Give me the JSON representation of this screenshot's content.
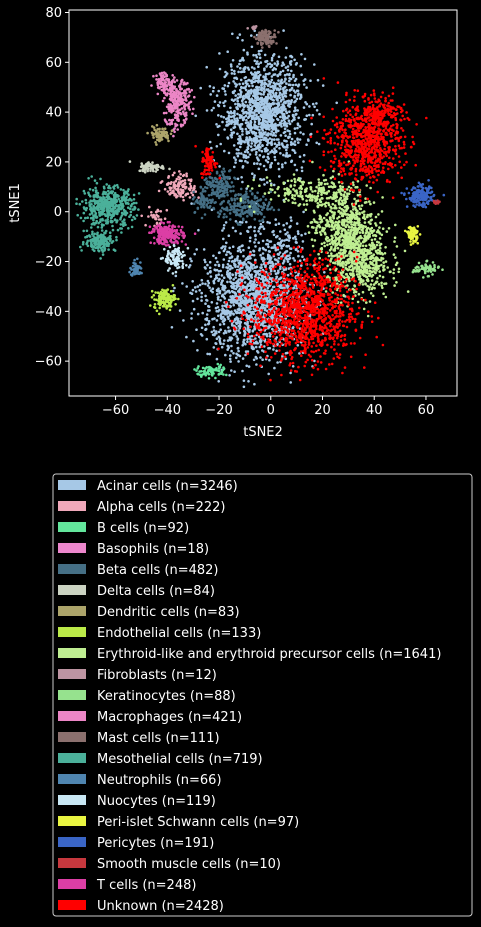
{
  "chart_data": {
    "type": "scatter",
    "xlabel": "tSNE2",
    "ylabel": "tSNE1",
    "xlim": [
      -78,
      72
    ],
    "ylim": [
      -74,
      81
    ],
    "xticks": [
      -60,
      -40,
      -20,
      0,
      20,
      40,
      60
    ],
    "yticks": [
      -60,
      -40,
      -20,
      0,
      20,
      40,
      60,
      80
    ],
    "grid": false,
    "legend_position": "below",
    "series": [
      {
        "name": "Acinar cells (n=3246)",
        "color": "#a6c8e6",
        "clusters": [
          {
            "x": -3,
            "y": 40,
            "sx": 8,
            "sy": 11,
            "n": 1300
          },
          {
            "x": -7,
            "y": -35,
            "sx": 10,
            "sy": 12,
            "n": 1500
          },
          {
            "x": 5,
            "y": -12,
            "sx": 4,
            "sy": 5,
            "n": 80
          }
        ]
      },
      {
        "name": "Alpha cells (n=222)",
        "color": "#f0a8ba",
        "clusters": [
          {
            "x": -35,
            "y": 10,
            "sx": 3,
            "sy": 2.5,
            "n": 120
          },
          {
            "x": -44,
            "y": -2,
            "sx": 2,
            "sy": 2,
            "n": 30
          }
        ]
      },
      {
        "name": "B cells (n=92)",
        "color": "#63e69c",
        "clusters": [
          {
            "x": -23,
            "y": -64,
            "sx": 3,
            "sy": 1.2,
            "n": 70
          }
        ]
      },
      {
        "name": "Basophils (n=18)",
        "color": "#ec86cc",
        "clusters": [
          {
            "x": -38,
            "y": 34,
            "sx": 1.5,
            "sy": 2,
            "n": 18
          }
        ]
      },
      {
        "name": "Beta cells (n=482)",
        "color": "#456f85",
        "clusters": [
          {
            "x": -20,
            "y": 10,
            "sx": 3,
            "sy": 3,
            "n": 150
          },
          {
            "x": -10,
            "y": 2,
            "sx": 5,
            "sy": 3,
            "n": 200
          },
          {
            "x": -26,
            "y": 4,
            "sx": 2,
            "sy": 2,
            "n": 60
          }
        ]
      },
      {
        "name": "Delta cells (n=84)",
        "color": "#cbd3c2",
        "clusters": [
          {
            "x": -46,
            "y": 18,
            "sx": 2.5,
            "sy": 1,
            "n": 70
          }
        ]
      },
      {
        "name": "Dendritic cells (n=83)",
        "color": "#aca46a",
        "clusters": [
          {
            "x": -43,
            "y": 31,
            "sx": 2,
            "sy": 1.5,
            "n": 70
          }
        ]
      },
      {
        "name": "Endothelial cells (n=133)",
        "color": "#bbea48",
        "clusters": [
          {
            "x": -41,
            "y": -35,
            "sx": 2,
            "sy": 2,
            "n": 120
          }
        ]
      },
      {
        "name": "Erythroid-like and erythroid precursor cells (n=1641)",
        "color": "#bfee92",
        "clusters": [
          {
            "x": 28,
            "y": -5,
            "sx": 6,
            "sy": 7,
            "n": 500
          },
          {
            "x": 34,
            "y": -20,
            "sx": 6,
            "sy": 7,
            "n": 600
          },
          {
            "x": 16,
            "y": 8,
            "sx": 10,
            "sy": 3,
            "n": 200
          }
        ]
      },
      {
        "name": "Fibroblasts (n=12)",
        "color": "#bd94a2",
        "clusters": [
          {
            "x": -7,
            "y": 74,
            "sx": 1,
            "sy": 0.6,
            "n": 12
          }
        ]
      },
      {
        "name": "Keratinocytes (n=88)",
        "color": "#96e28e",
        "clusters": [
          {
            "x": 60,
            "y": -23,
            "sx": 2.5,
            "sy": 1.2,
            "n": 70
          }
        ]
      },
      {
        "name": "Macrophages (n=421)",
        "color": "#ec86c6",
        "clusters": [
          {
            "x": -36,
            "y": 44,
            "sx": 2.5,
            "sy": 4,
            "n": 220
          },
          {
            "x": -41,
            "y": 52,
            "sx": 2,
            "sy": 2,
            "n": 80
          }
        ]
      },
      {
        "name": "Mast cells (n=111)",
        "color": "#8b706e",
        "clusters": [
          {
            "x": -2,
            "y": 70,
            "sx": 2,
            "sy": 1.5,
            "n": 100
          }
        ]
      },
      {
        "name": "Mesothelial cells (n=719)",
        "color": "#4bb09a",
        "clusters": [
          {
            "x": -63,
            "y": 2,
            "sx": 5,
            "sy": 4,
            "n": 450
          },
          {
            "x": -66,
            "y": -12,
            "sx": 3,
            "sy": 2,
            "n": 150
          }
        ]
      },
      {
        "name": "Neutrophils (n=66)",
        "color": "#4f85b0",
        "clusters": [
          {
            "x": -52,
            "y": -23,
            "sx": 1.2,
            "sy": 1.5,
            "n": 55
          }
        ]
      },
      {
        "name": "Nuocytes (n=119)",
        "color": "#c9e8f5",
        "clusters": [
          {
            "x": -37,
            "y": -19,
            "sx": 2,
            "sy": 2.5,
            "n": 100
          }
        ]
      },
      {
        "name": "Peri-islet Schwann cells (n=97)",
        "color": "#e9f541",
        "clusters": [
          {
            "x": 55,
            "y": -9,
            "sx": 1,
            "sy": 1.5,
            "n": 80
          }
        ]
      },
      {
        "name": "Pericytes (n=191)",
        "color": "#3a65c6",
        "clusters": [
          {
            "x": 58,
            "y": 6,
            "sx": 2.5,
            "sy": 2,
            "n": 170
          }
        ]
      },
      {
        "name": "Smooth muscle cells (n=10)",
        "color": "#c7383e",
        "clusters": [
          {
            "x": 64,
            "y": 4,
            "sx": 0.8,
            "sy": 0.8,
            "n": 10
          }
        ]
      },
      {
        "name": "T cells (n=248)",
        "color": "#dc3ea5",
        "clusters": [
          {
            "x": -40,
            "y": -9,
            "sx": 3,
            "sy": 2,
            "n": 200
          }
        ]
      },
      {
        "name": "Unknown (n=2428)",
        "color": "#ff0000",
        "clusters": [
          {
            "x": 37,
            "y": 28,
            "sx": 7,
            "sy": 8,
            "n": 750
          },
          {
            "x": 13,
            "y": -40,
            "sx": 10,
            "sy": 10,
            "n": 1200
          },
          {
            "x": -24,
            "y": 20,
            "sx": 1.5,
            "sy": 3,
            "n": 80
          },
          {
            "x": 42,
            "y": 40,
            "sx": 4,
            "sy": 3,
            "n": 150
          }
        ]
      }
    ]
  }
}
